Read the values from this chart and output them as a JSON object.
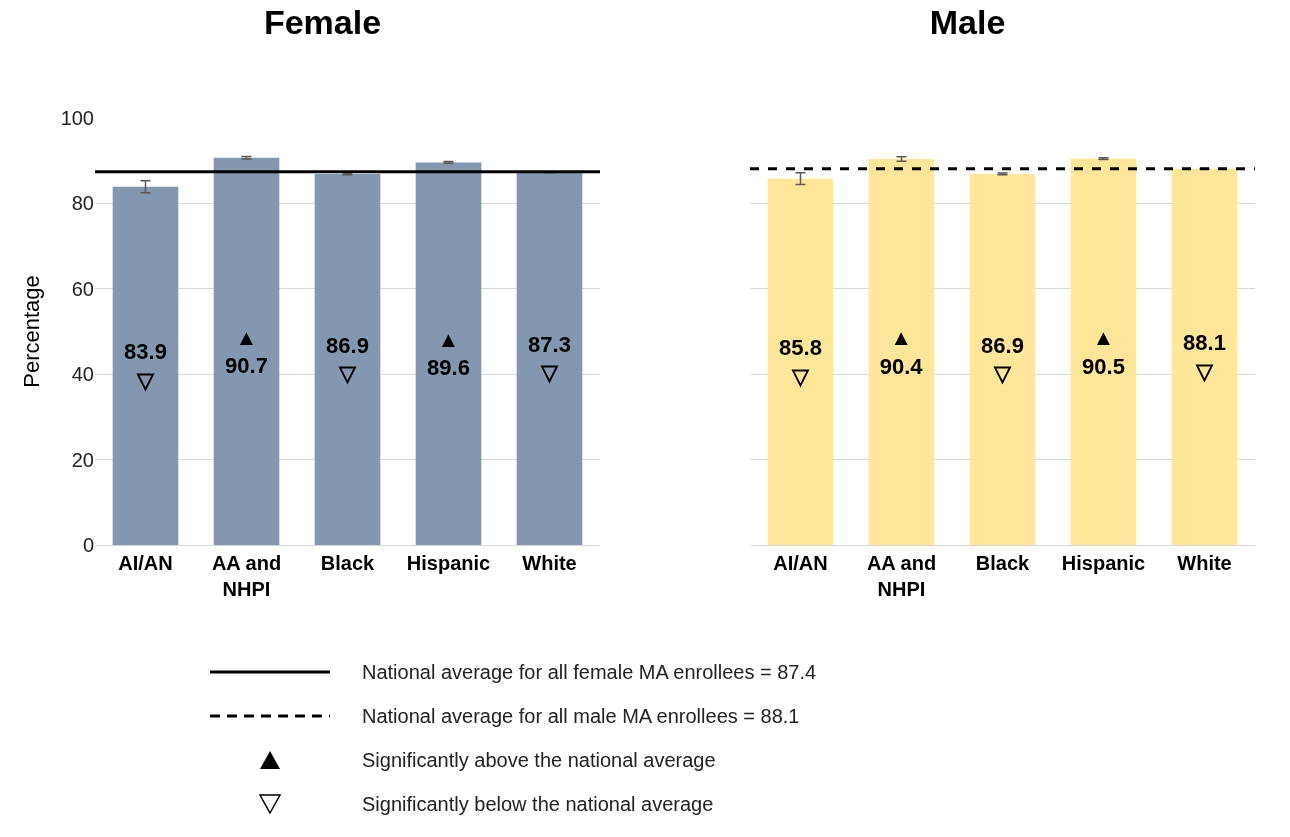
{
  "chart_data": [
    {
      "type": "bar",
      "title": "Female",
      "ylabel": "Percentage",
      "categories": [
        "AI/AN",
        "AA and\nNHPI",
        "Black",
        "Hispanic",
        "White"
      ],
      "values": [
        83.9,
        90.7,
        86.9,
        89.6,
        87.3
      ],
      "errors": [
        1.4,
        0.3,
        0.2,
        0.2,
        0.1
      ],
      "color": "#8497b0",
      "value_labels": [
        "83.9\n▽",
        "▲\n90.7",
        "86.9\n▽",
        "▲\n89.6",
        "87.3\n▽"
      ],
      "ylim": [
        0,
        100
      ],
      "yticks": [
        0,
        20,
        40,
        60,
        80,
        100
      ],
      "grid": "y",
      "ref_lines": [
        {
          "axis": "y",
          "value": 87.4,
          "label": "National average for all female MA enrollees = 87.4",
          "color": "#000000",
          "line_style": "solid"
        }
      ],
      "annotations": [
        "Significantly above the national average",
        "Significantly below the national average"
      ]
    },
    {
      "type": "bar",
      "title": "Male",
      "categories": [
        "AI/AN",
        "AA and\nNHPI",
        "Black",
        "Hispanic",
        "White"
      ],
      "values": [
        85.8,
        90.4,
        86.9,
        90.5,
        88.1
      ],
      "errors": [
        1.4,
        0.5,
        0.2,
        0.2,
        0.1
      ],
      "color": "#ffe699",
      "value_labels": [
        "85.8\n▽",
        "▲\n90.4",
        "86.9\n▽",
        "▲\n90.5",
        "88.1\n▽"
      ],
      "ylim": [
        0,
        100
      ],
      "yticks": [
        0,
        20,
        40,
        60,
        80,
        100
      ],
      "grid": "y",
      "tick_labels": "x",
      "ref_lines": [
        {
          "axis": "y",
          "value": 88.1,
          "label": "National average for all male MA enrollees = 88.1",
          "color": "#000000",
          "line_style": "dashed"
        }
      ]
    }
  ]
}
